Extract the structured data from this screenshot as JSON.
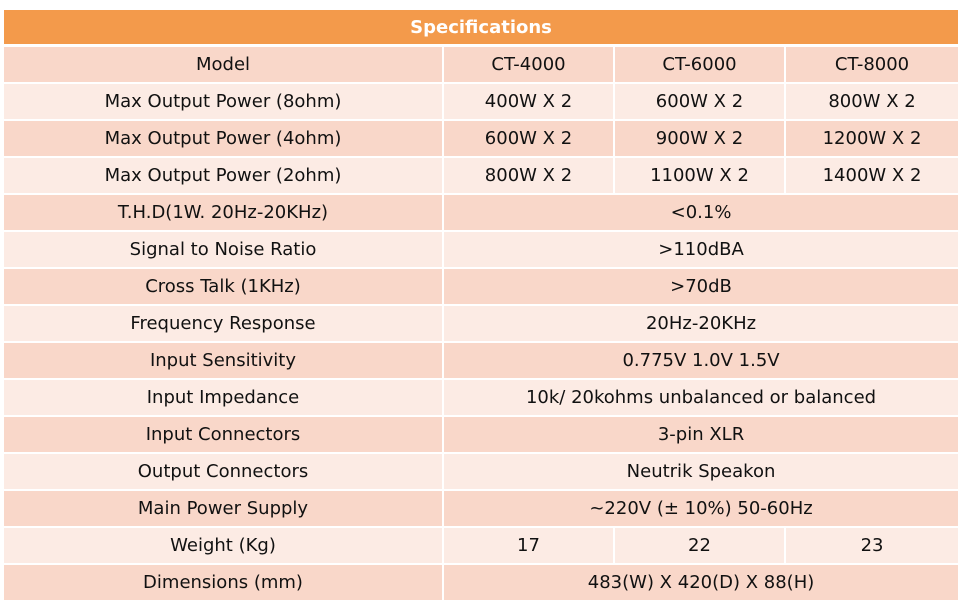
{
  "title": "Specifications",
  "header": {
    "label": "Model",
    "models": [
      "CT-4000",
      "CT-6000",
      "CT-8000"
    ]
  },
  "rows": [
    {
      "label": "Max Output Power (8ohm)",
      "values": [
        "400W X 2",
        "600W X 2",
        "800W X 2"
      ]
    },
    {
      "label": "Max Output Power (4ohm)",
      "values": [
        "600W X 2",
        "900W X 2",
        "1200W X 2"
      ]
    },
    {
      "label": "Max Output Power (2ohm)",
      "values": [
        "800W X 2",
        "1100W X 2",
        "1400W X 2"
      ]
    },
    {
      "label": "T.H.D(1W. 20Hz-20KHz)",
      "value": "<0.1%"
    },
    {
      "label": "Signal to Noise Ratio",
      "value": ">110dBA"
    },
    {
      "label": "Cross Talk (1KHz)",
      "value": ">70dB"
    },
    {
      "label": "Frequency Response",
      "value": "20Hz-20KHz"
    },
    {
      "label": "Input Sensitivity",
      "value": "0.775V  1.0V  1.5V"
    },
    {
      "label": "Input Impedance",
      "value": "10k/ 20kohms unbalanced or balanced"
    },
    {
      "label": "Input Connectors",
      "value": "3-pin XLR"
    },
    {
      "label": "Output Connectors",
      "value": "Neutrik Speakon"
    },
    {
      "label": "Main Power Supply",
      "value": "~220V (± 10%) 50-60Hz"
    },
    {
      "label": "Weight (Kg)",
      "values": [
        "17",
        "22",
        "23"
      ]
    },
    {
      "label": "Dimensions (mm)",
      "value": "483(W) X 420(D) X 88(H)"
    }
  ],
  "colors": {
    "header": "#f39a4b",
    "row_odd": "#f9d7c9",
    "row_even": "#fcebe4"
  }
}
